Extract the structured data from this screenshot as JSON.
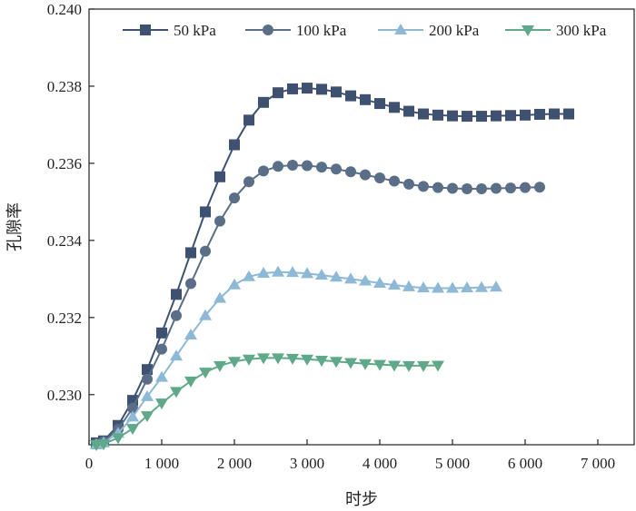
{
  "chart_data": {
    "type": "line",
    "title": "",
    "xlabel": "时步",
    "ylabel": "孔隙率",
    "xlim": [
      0,
      7500
    ],
    "ylim": [
      0.2287,
      0.24
    ],
    "x_ticks": [
      0,
      1000,
      2000,
      3000,
      4000,
      5000,
      6000,
      7000
    ],
    "x_tick_labels": [
      "0",
      "1 000",
      "2 000",
      "3 000",
      "4 000",
      "5 000",
      "6 000",
      "7 000"
    ],
    "y_ticks": [
      0.23,
      0.232,
      0.234,
      0.236,
      0.238,
      0.24
    ],
    "y_tick_labels": [
      "0.230",
      "0.232",
      "0.234",
      "0.236",
      "0.238",
      "0.240"
    ],
    "legend_position": "top",
    "series": [
      {
        "name": "50 kPa",
        "marker": "square",
        "color": "#3e5170",
        "x": [
          100,
          200,
          400,
          600,
          800,
          1000,
          1200,
          1400,
          1600,
          1800,
          2000,
          2200,
          2400,
          2600,
          2800,
          3000,
          3200,
          3400,
          3600,
          3800,
          4000,
          4200,
          4400,
          4600,
          4800,
          5000,
          5200,
          5400,
          5600,
          5800,
          6000,
          6200,
          6400,
          6600
        ],
        "y": [
          0.22875,
          0.2288,
          0.2292,
          0.22985,
          0.23065,
          0.2316,
          0.2326,
          0.23368,
          0.23474,
          0.23565,
          0.23648,
          0.23712,
          0.23758,
          0.23783,
          0.23793,
          0.23795,
          0.23792,
          0.23785,
          0.23775,
          0.23765,
          0.23755,
          0.23745,
          0.23735,
          0.23728,
          0.23725,
          0.23723,
          0.23722,
          0.23722,
          0.23723,
          0.23724,
          0.23725,
          0.23727,
          0.23728,
          0.23728
        ]
      },
      {
        "name": "100 kPa",
        "marker": "circle",
        "color": "#5a6e88",
        "x": [
          100,
          200,
          400,
          600,
          800,
          1000,
          1200,
          1400,
          1600,
          1800,
          2000,
          2200,
          2400,
          2600,
          2800,
          3000,
          3200,
          3400,
          3600,
          3800,
          4000,
          4200,
          4400,
          4600,
          4800,
          5000,
          5200,
          5400,
          5600,
          5800,
          6000,
          6200
        ],
        "y": [
          0.22872,
          0.22878,
          0.2291,
          0.22965,
          0.2304,
          0.23118,
          0.23205,
          0.23288,
          0.23372,
          0.2345,
          0.2351,
          0.23552,
          0.2358,
          0.23592,
          0.23595,
          0.23594,
          0.2359,
          0.23585,
          0.23578,
          0.2357,
          0.23562,
          0.23554,
          0.23546,
          0.2354,
          0.23537,
          0.23535,
          0.23534,
          0.23534,
          0.23535,
          0.23536,
          0.23537,
          0.23538
        ]
      },
      {
        "name": "200 kPa",
        "marker": "triangle-up",
        "color": "#8db9d6",
        "x": [
          100,
          200,
          400,
          600,
          800,
          1000,
          1200,
          1400,
          1600,
          1800,
          2000,
          2200,
          2400,
          2600,
          2800,
          3000,
          3200,
          3400,
          3600,
          3800,
          4000,
          4200,
          4400,
          4600,
          4800,
          5000,
          5200,
          5400,
          5600
        ],
        "y": [
          0.2287,
          0.22875,
          0.229,
          0.22942,
          0.22995,
          0.23045,
          0.231,
          0.23155,
          0.23205,
          0.2325,
          0.23285,
          0.23306,
          0.23315,
          0.23318,
          0.23317,
          0.23314,
          0.2331,
          0.23305,
          0.233,
          0.23295,
          0.23289,
          0.23284,
          0.2328,
          0.23277,
          0.23276,
          0.23276,
          0.23277,
          0.23278,
          0.23279
        ]
      },
      {
        "name": "300 kPa",
        "marker": "triangle-down",
        "color": "#5fa88a",
        "x": [
          100,
          200,
          400,
          600,
          800,
          1000,
          1200,
          1400,
          1600,
          1800,
          2000,
          2200,
          2400,
          2600,
          2800,
          3000,
          3200,
          3400,
          3600,
          3800,
          4000,
          4200,
          4400,
          4600,
          4800
        ],
        "y": [
          0.2287,
          0.22872,
          0.22888,
          0.22912,
          0.22945,
          0.22978,
          0.23008,
          0.23035,
          0.23058,
          0.23075,
          0.23086,
          0.23092,
          0.23095,
          0.23095,
          0.23094,
          0.23092,
          0.23089,
          0.23086,
          0.23083,
          0.2308,
          0.23078,
          0.23076,
          0.23075,
          0.23075,
          0.23076
        ]
      }
    ]
  }
}
